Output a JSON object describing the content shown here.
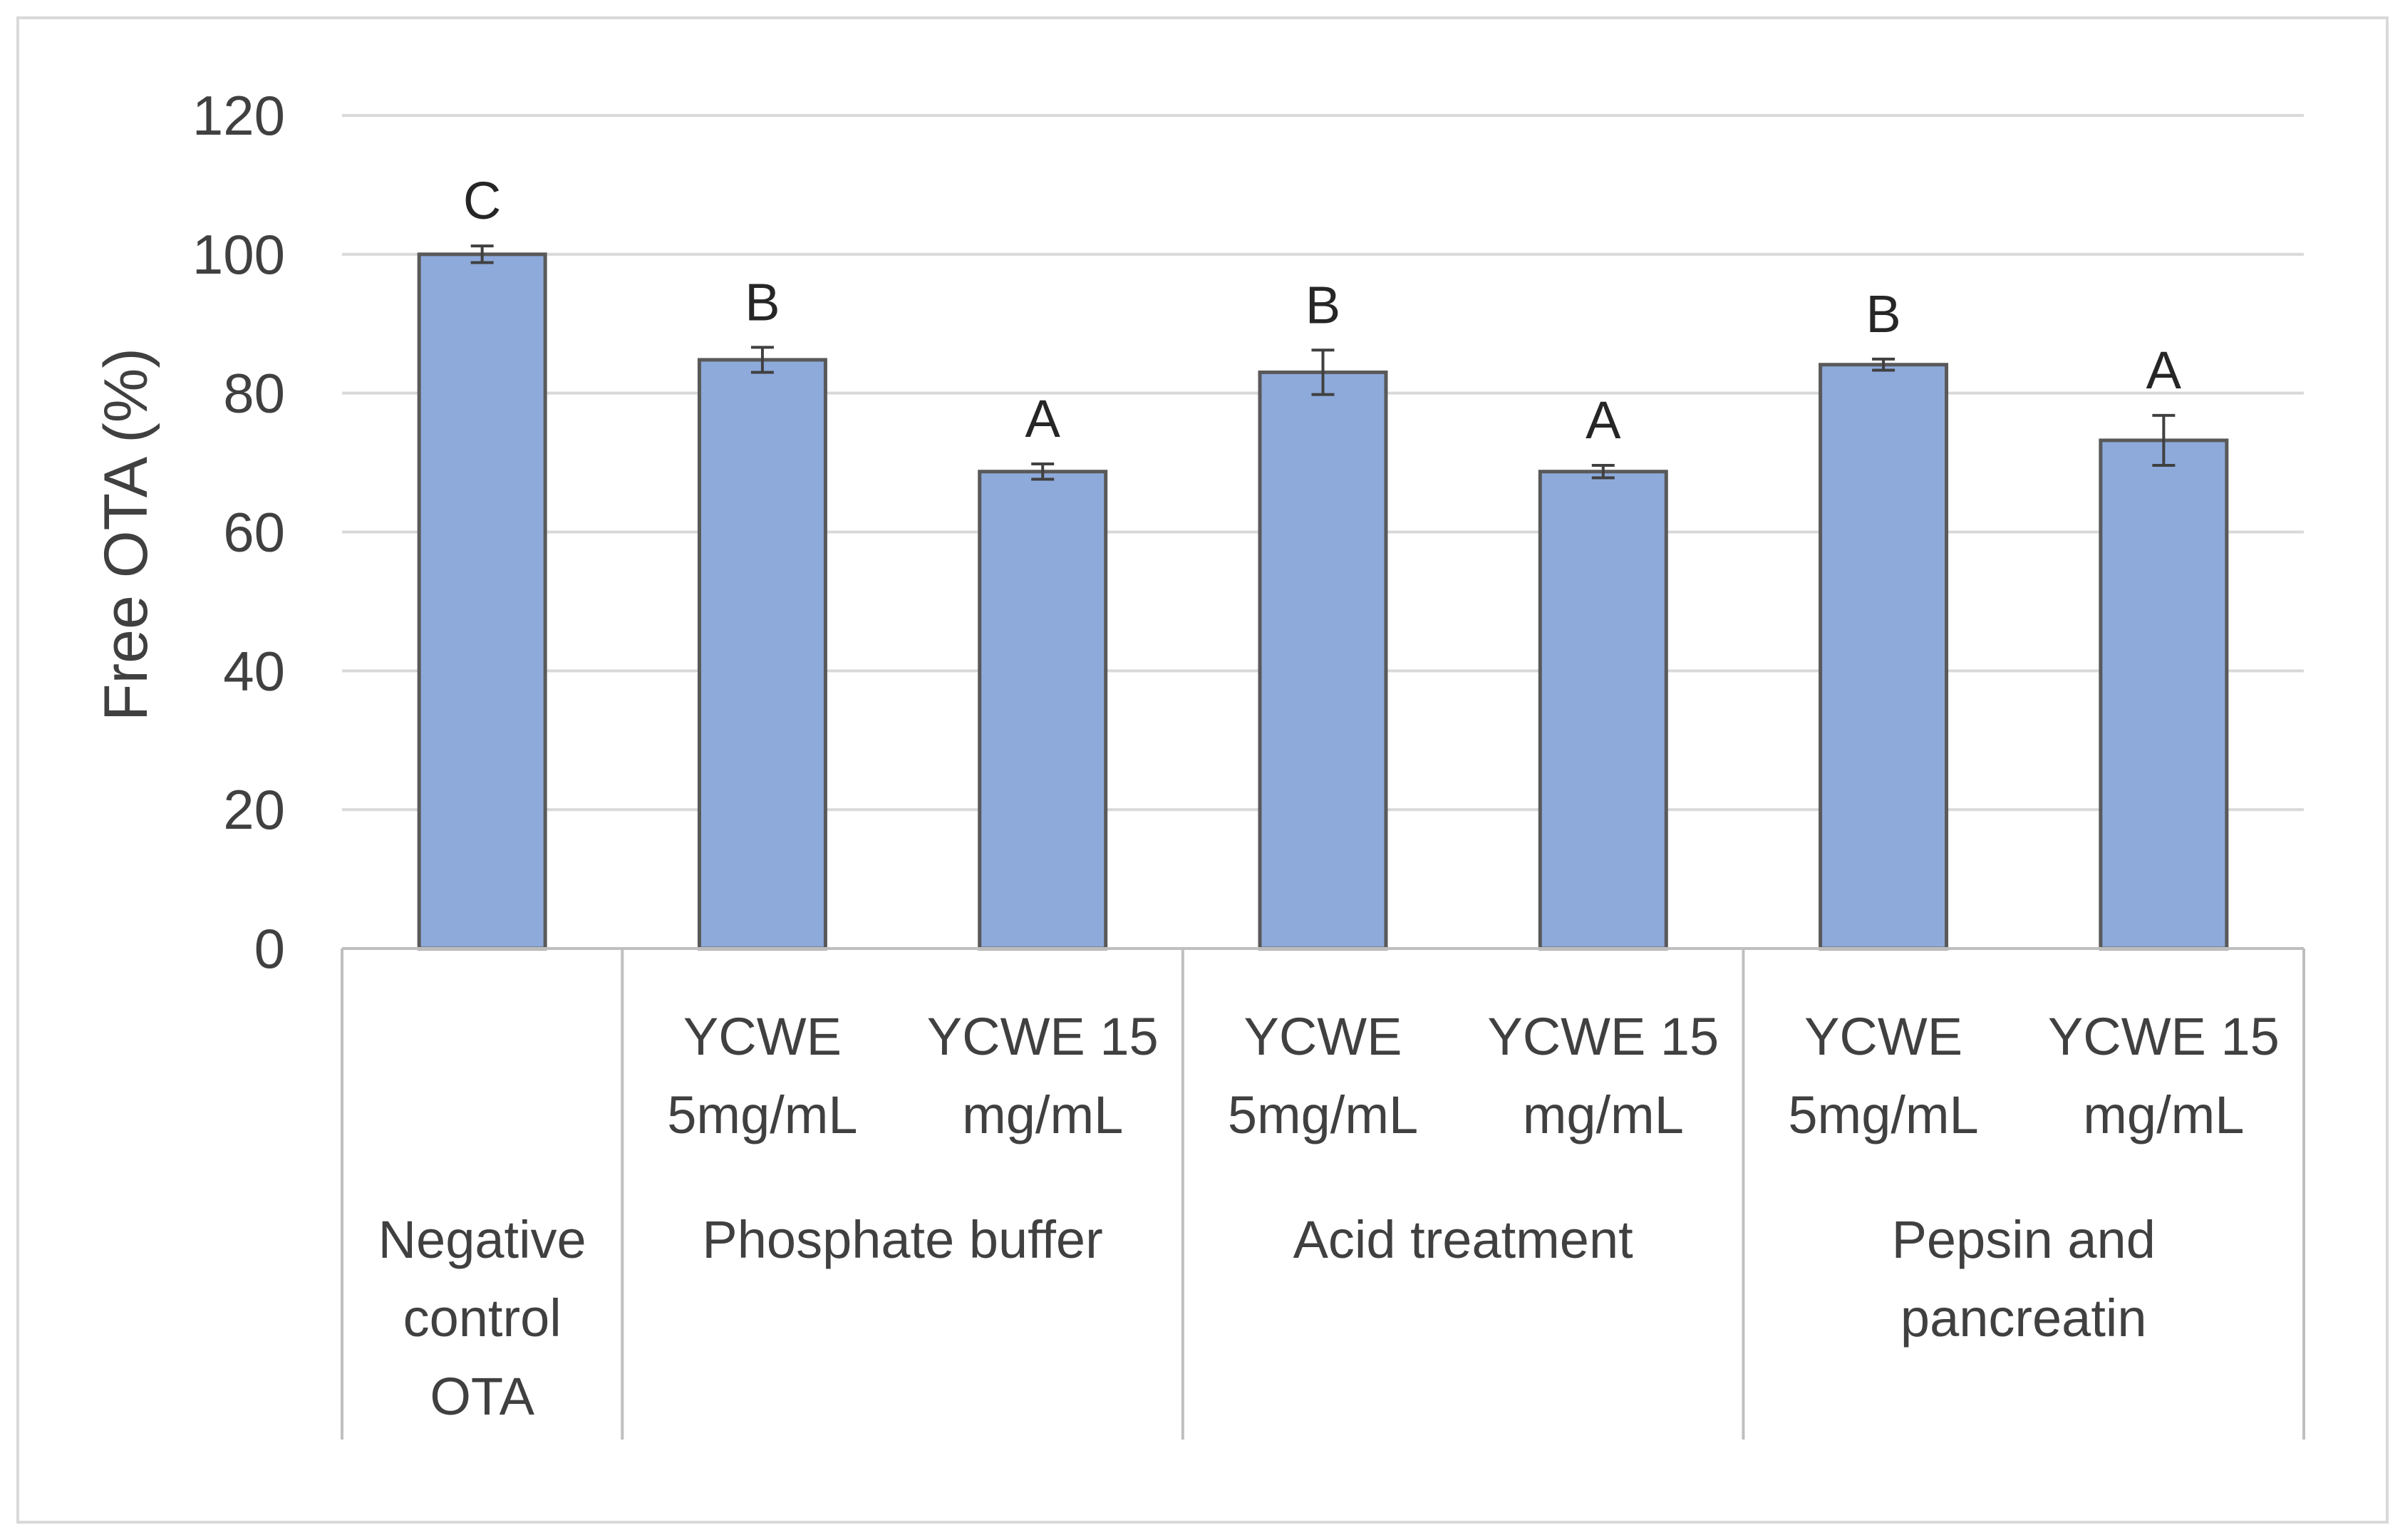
{
  "chart_data": {
    "type": "bar",
    "title": "",
    "xlabel": "",
    "ylabel": "Free OTA (%)",
    "ylim": [
      0,
      120
    ],
    "yticks": [
      0,
      20,
      40,
      60,
      80,
      100,
      120
    ],
    "grid": true,
    "legend": "none",
    "bar_color": "#8eaadb",
    "bar_edge_color": "#595959",
    "grid_color": "#d9d9d9",
    "categories": [
      {
        "lines": []
      },
      {
        "lines": [
          "YCWE",
          "5mg/mL"
        ]
      },
      {
        "lines": [
          "YCWE 15",
          "mg/mL"
        ]
      },
      {
        "lines": [
          "YCWE",
          "5mg/mL"
        ]
      },
      {
        "lines": [
          "YCWE 15",
          "mg/mL"
        ]
      },
      {
        "lines": [
          "YCWE",
          "5mg/mL"
        ]
      },
      {
        "lines": [
          "YCWE 15",
          "mg/mL"
        ]
      }
    ],
    "groups": [
      {
        "lines": [
          "Negative",
          "control",
          "OTA"
        ],
        "span": [
          0,
          0
        ]
      },
      {
        "lines": [
          "Phosphate buffer"
        ],
        "span": [
          1,
          2
        ]
      },
      {
        "lines": [
          "Acid treatment"
        ],
        "span": [
          3,
          4
        ]
      },
      {
        "lines": [
          "Pepsin and",
          "pancreatin"
        ],
        "span": [
          5,
          6
        ]
      }
    ],
    "values": [
      100,
      84.8,
      68.7,
      83,
      68.7,
      84.1,
      73.2
    ],
    "errors": [
      1.2,
      1.8,
      1.1,
      3.2,
      0.9,
      0.8,
      3.6
    ],
    "significance": [
      "C",
      "B",
      "A",
      "B",
      "A",
      "B",
      "A"
    ]
  }
}
